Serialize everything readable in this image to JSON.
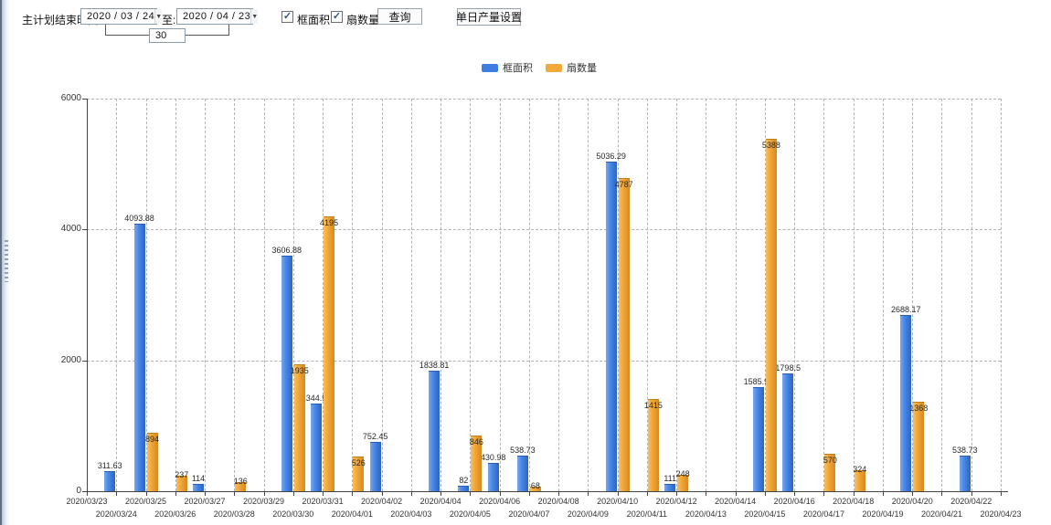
{
  "toolbar": {
    "end_time_label": "主计划结束时间:",
    "date_from": "2020 / 03 / 24",
    "to_label": "至:",
    "date_to": "2020 / 04 / 23",
    "interval_days": "30",
    "checkbox_frame_area": {
      "label": "框面积",
      "checked": true
    },
    "checkbox_fan_count": {
      "label": "扇数量",
      "checked": true
    },
    "query_button": "查询",
    "daily_output_button": "单日产量设置",
    "check_glyph": "✓",
    "dropdown_glyph": "▼"
  },
  "legend": [
    {
      "label": "框面积",
      "color": "#3D7EE0"
    },
    {
      "label": "扇数量",
      "color": "#F2A93C"
    }
  ],
  "chart_data": {
    "type": "bar",
    "title": "",
    "xlabel": "",
    "ylabel": "",
    "ylim": [
      0,
      6000
    ],
    "yticks": [
      0,
      2000,
      4000,
      6000
    ],
    "grid": true,
    "legend_position": "top",
    "categories": [
      "2020/03/23",
      "2020/03/24",
      "2020/03/25",
      "2020/03/26",
      "2020/03/27",
      "2020/03/28",
      "2020/03/29",
      "2020/03/30",
      "2020/03/31",
      "2020/04/01",
      "2020/04/02",
      "2020/04/03",
      "2020/04/04",
      "2020/04/05",
      "2020/04/06",
      "2020/04/07",
      "2020/04/08",
      "2020/04/09",
      "2020/04/10",
      "2020/04/11",
      "2020/04/12",
      "2020/04/13",
      "2020/04/14",
      "2020/04/15",
      "2020/04/16",
      "2020/04/17",
      "2020/04/18",
      "2020/04/19",
      "2020/04/20",
      "2020/04/21",
      "2020/04/22",
      "2020/04/23"
    ],
    "series": [
      {
        "name": "框面积",
        "color": "#3D7EE0",
        "values": [
          null,
          311.63,
          4093.88,
          null,
          114,
          null,
          null,
          3606.88,
          1344.95,
          null,
          752.45,
          null,
          1838.81,
          82,
          430.98,
          538.73,
          null,
          null,
          5036.29,
          null,
          111,
          null,
          null,
          1585.96,
          1798.5,
          null,
          null,
          null,
          2688.17,
          null,
          538.73,
          null
        ]
      },
      {
        "name": "扇数量",
        "color": "#F2A93C",
        "values": [
          null,
          null,
          894,
          237,
          null,
          136,
          null,
          1935,
          4195,
          526,
          null,
          null,
          null,
          846,
          null,
          68,
          null,
          null,
          4787,
          1415,
          248,
          null,
          null,
          5388,
          null,
          570,
          324,
          null,
          1368,
          null,
          null,
          null
        ]
      }
    ]
  }
}
